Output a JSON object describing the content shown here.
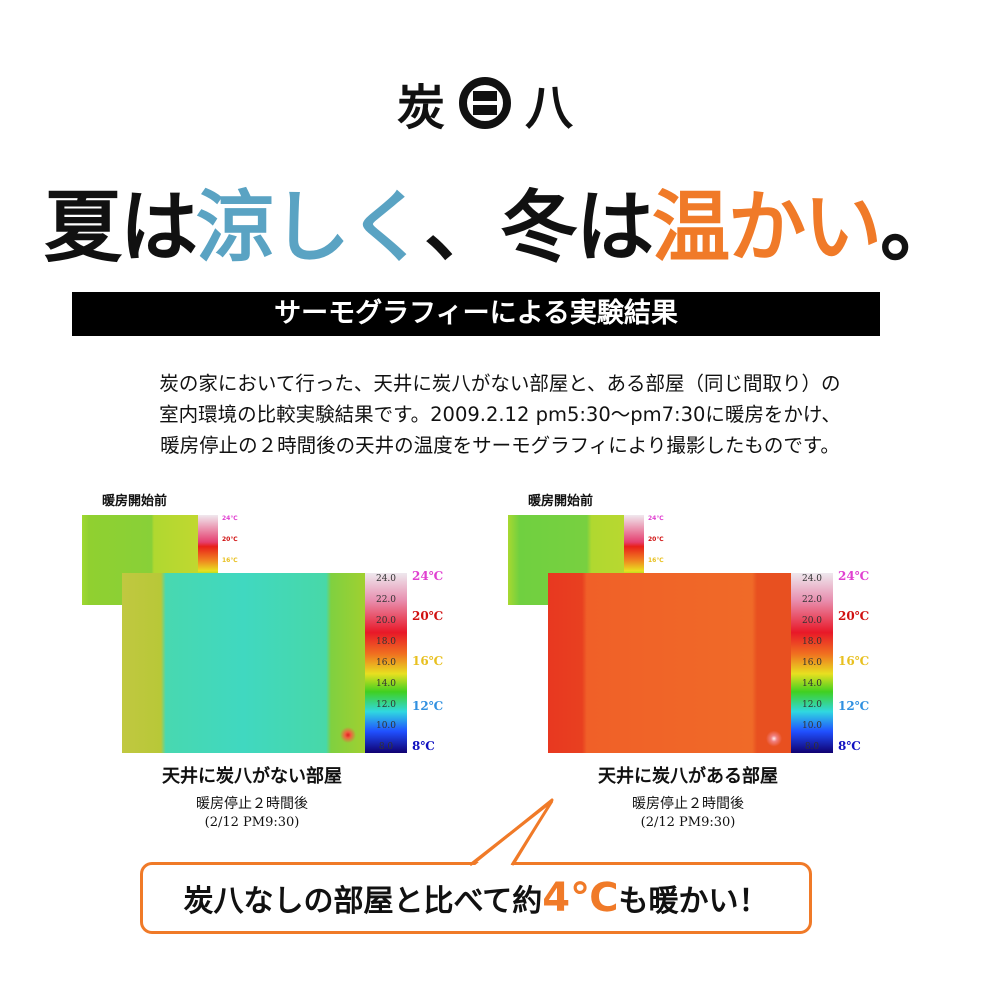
{
  "logo": {
    "text": "炭八",
    "left_char": "炭",
    "right_char": "八"
  },
  "headline": {
    "part1": "夏は",
    "cool": "涼しく",
    "part2": "、冬は",
    "warm": "温かい",
    "part3": "。",
    "cool_color": "#5aa3c3",
    "warm_color": "#f07a28"
  },
  "section_title": "サーモグラフィーによる実験結果",
  "intro": [
    "炭の家において行った、天井に炭八がない部屋と、ある部屋（同じ間取り）の",
    "室内環境の比較実験結果です。2009.2.12 pm5:30〜pm7:30に暖房をかけ、",
    "暖房停止の２時間後の天井の温度をサーモグラフィにより撮影したものです。"
  ],
  "scale": {
    "ticks": [
      "24.0",
      "22.0",
      "20.0",
      "18.0",
      "16.0",
      "14.0",
      "12.0",
      "10.0",
      "8.0"
    ],
    "labels": [
      "24℃",
      "20℃",
      "16℃",
      "12℃",
      "8℃"
    ],
    "label_colors": [
      "#e040d0",
      "#d01010",
      "#e8c020",
      "#3090e0",
      "#1010c0"
    ]
  },
  "panels": [
    {
      "before_label": "暖房開始前",
      "caption": "天井に炭八がない部屋",
      "sub": "暖房停止２時間後",
      "date": "(2/12 PM9:30)"
    },
    {
      "before_label": "暖房開始前",
      "caption": "天井に炭八がある部屋",
      "sub": "暖房停止２時間後",
      "date": "(2/12 PM9:30)"
    }
  ],
  "callout": {
    "pre": "炭八なしの部屋と比べて約",
    "value": "4℃",
    "post": "も暖かい！",
    "color": "#f07a28"
  }
}
